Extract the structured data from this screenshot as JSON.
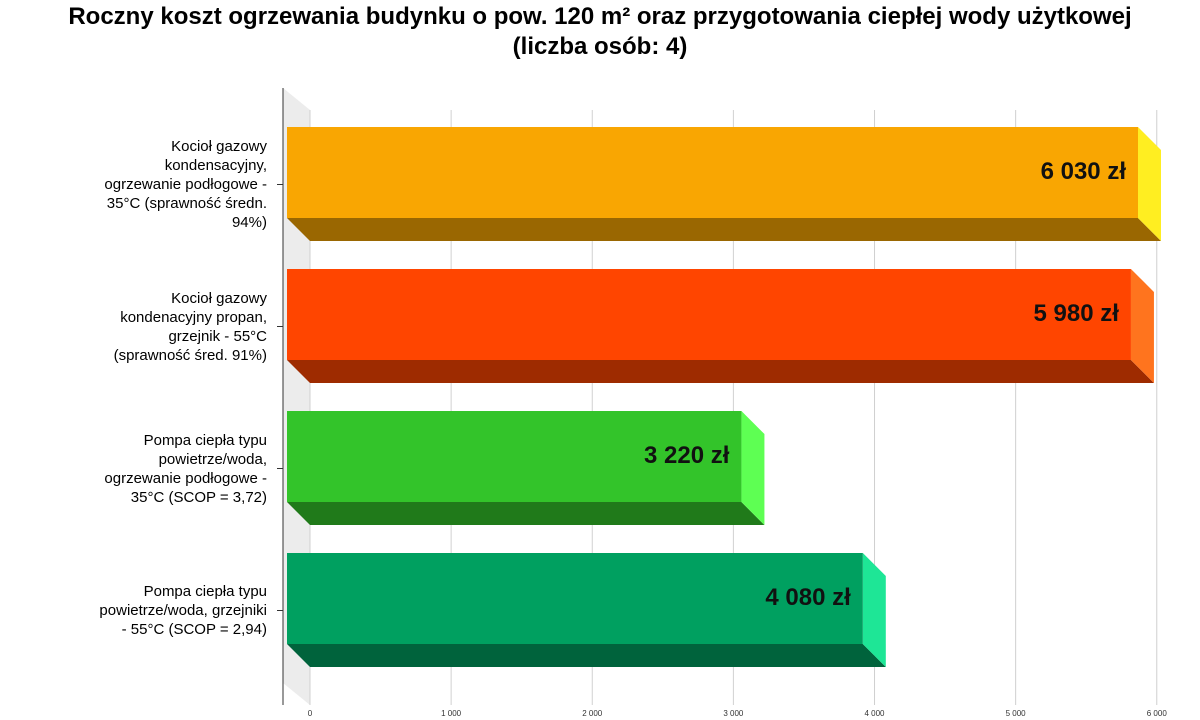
{
  "chart_data": {
    "type": "bar3d-horizontal",
    "title": "Roczny koszt ogrzewania budynku o pow. 120 m² oraz przygotowania ciepłej wody użytkowej (liczba osób: 4)",
    "categories": [
      "Kocioł gazowy kondensacyjny, ogrzewanie podłogowe - 35°C (sprawność średn. 94%)",
      "Kocioł gazowy kondenacyjny propan, grzejnik - 55°C (sprawność śred. 91%)",
      "Pompa ciepła typu powietrze/woda, ogrzewanie podłogowe - 35°C (SCOP = 3,72)",
      "Pompa ciepła typu powietrze/woda, grzejniki - 55°C (SCOP = 2,94)"
    ],
    "values": [
      6030,
      5980,
      3220,
      4080
    ],
    "value_labels": [
      "6 030 zł",
      "5 980 zł",
      "3 220 zł",
      "4 080 zł"
    ],
    "colors": [
      "#f9a602",
      "#ff4500",
      "#33c42a",
      "#00a060"
    ],
    "xlim": [
      0,
      6000
    ],
    "xticks": [
      0,
      {
        "value": 1000,
        "label": "1 000"
      },
      {
        "value": 2000,
        "label": "2 000"
      },
      {
        "value": 3000,
        "label": "3 000"
      },
      {
        "value": 4000,
        "label": "4 000"
      },
      {
        "value": 5000,
        "label": "5 000"
      },
      {
        "value": 6000,
        "label": "6 000"
      }
    ],
    "grid": true
  }
}
